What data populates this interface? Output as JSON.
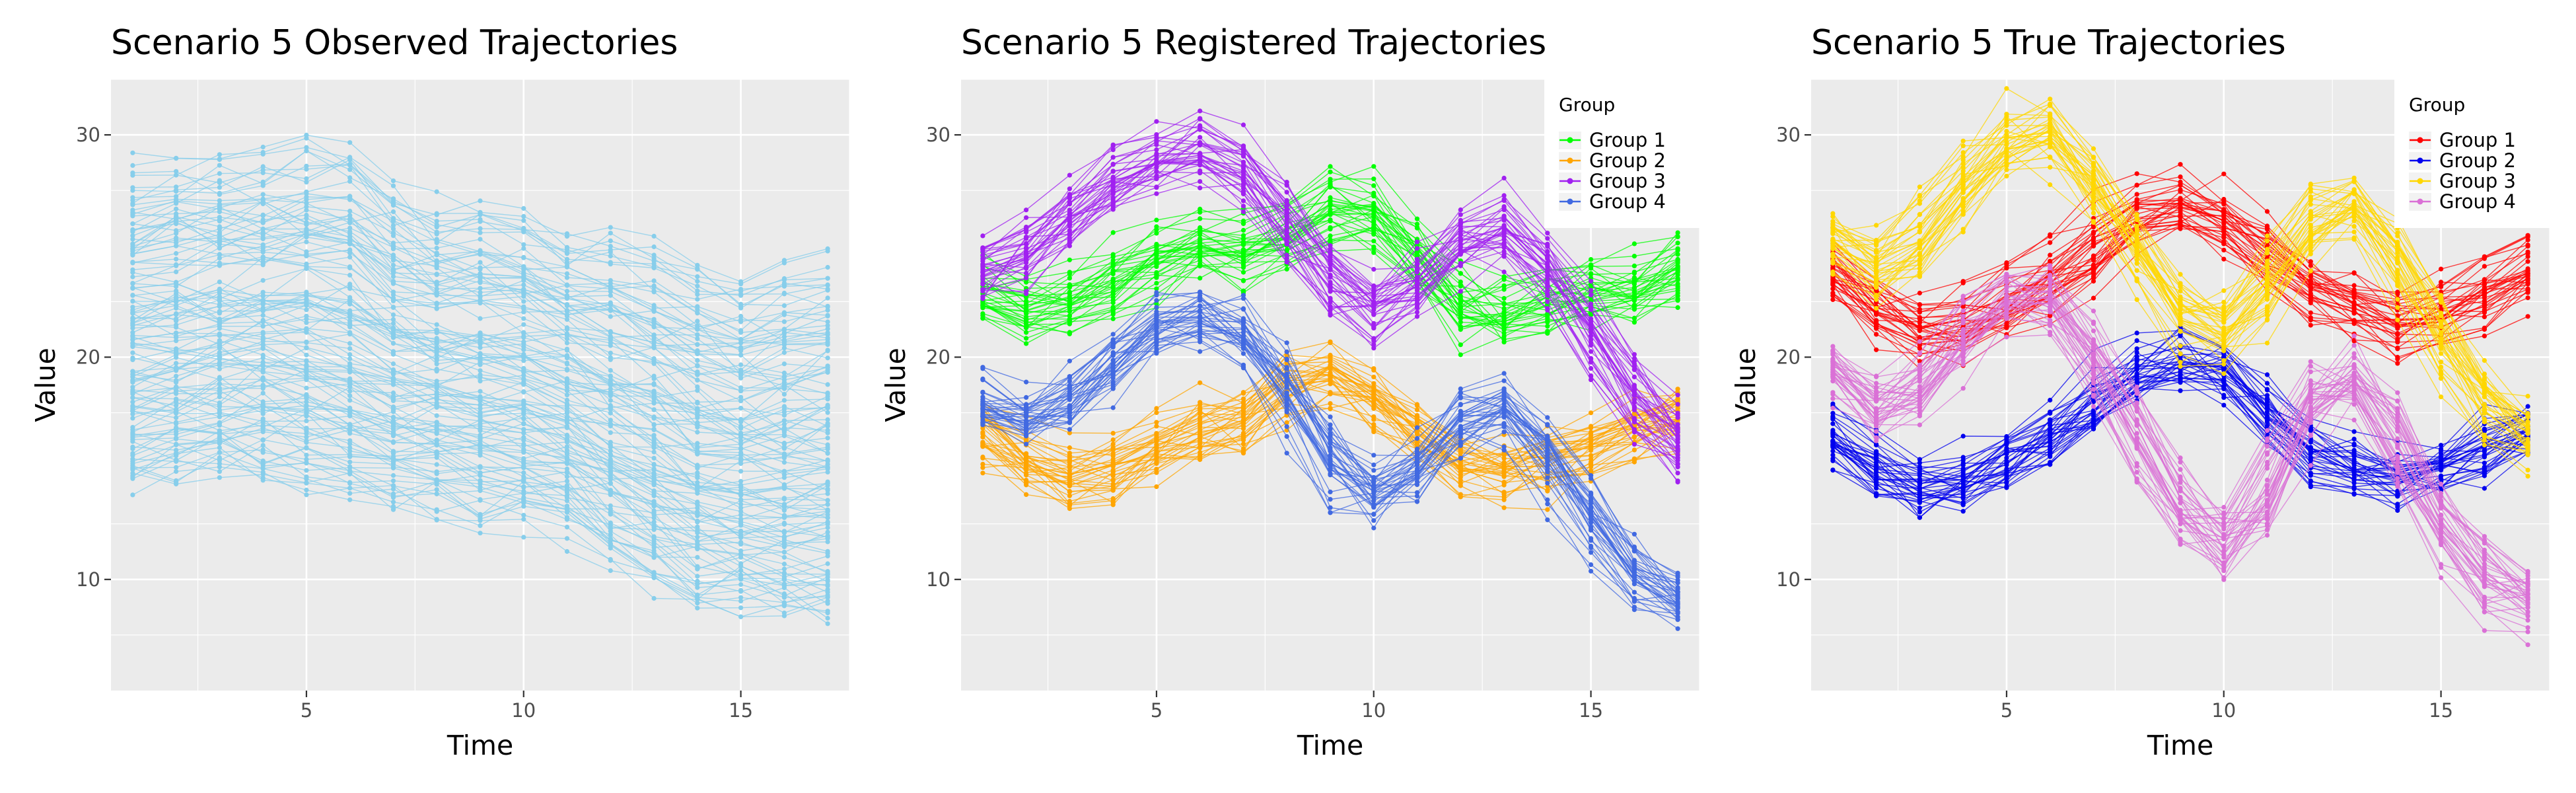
{
  "chart_data": [
    {
      "type": "line",
      "title": "Scenario 5 Observed Trajectories",
      "xlabel": "Time",
      "ylabel": "Value",
      "xlim": [
        0.5,
        17.5
      ],
      "ylim": [
        5,
        32.5
      ],
      "x_ticks": [
        5,
        10,
        15
      ],
      "y_ticks": [
        10,
        20,
        30
      ],
      "grid": true,
      "legend": null,
      "line_color": "#87CEEB",
      "x": [
        1,
        2,
        3,
        4,
        5,
        6,
        7,
        8,
        9,
        10,
        11,
        12,
        13,
        14,
        15,
        16,
        17
      ],
      "band_min": [
        12.5,
        12.5,
        13,
        13,
        12.5,
        12,
        11.5,
        11.5,
        11,
        11,
        10.5,
        9,
        8,
        7,
        7,
        6.5,
        6.5
      ],
      "band_max": [
        30,
        30.5,
        30.5,
        30.5,
        31,
        31,
        29,
        28,
        28.5,
        28,
        27,
        27,
        26.5,
        25.5,
        25,
        25.5,
        26
      ]
    },
    {
      "type": "line",
      "title": "Scenario 5 Registered Trajectories",
      "xlabel": "Time",
      "ylabel": "Value",
      "xlim": [
        0.5,
        17.5
      ],
      "ylim": [
        5,
        32.5
      ],
      "x_ticks": [
        5,
        10,
        15
      ],
      "y_ticks": [
        10,
        20,
        30
      ],
      "grid": true,
      "legend": {
        "title": "Group",
        "position": "top-right"
      },
      "x": [
        1,
        2,
        3,
        4,
        5,
        6,
        7,
        8,
        9,
        10,
        11,
        12,
        13,
        14,
        15,
        16,
        17
      ],
      "series": [
        {
          "name": "Group 1",
          "color": "#00FF00",
          "values": [
            23,
            22,
            22.5,
            23.5,
            24.5,
            25,
            24.5,
            25.5,
            27,
            26.5,
            24.5,
            22,
            22,
            22.5,
            23,
            23,
            24
          ]
        },
        {
          "name": "Group 2",
          "color": "#FFA500",
          "values": [
            17,
            15.5,
            14.5,
            15,
            16,
            17,
            17,
            19,
            19.5,
            18.5,
            17,
            15,
            15,
            15.5,
            16,
            17,
            17.5
          ]
        },
        {
          "name": "Group 3",
          "color": "#A020F0",
          "values": [
            24,
            25,
            26.5,
            28,
            29,
            29.5,
            28.5,
            26,
            23.5,
            22,
            23.5,
            25.5,
            26,
            24,
            21,
            18,
            16
          ]
        },
        {
          "name": "Group 4",
          "color": "#4169E1",
          "values": [
            18,
            17,
            18,
            20,
            21.5,
            22,
            21,
            18.5,
            15,
            13.5,
            15,
            17.5,
            18,
            15.5,
            12.5,
            10,
            9
          ]
        }
      ]
    },
    {
      "type": "line",
      "title": "Scenario 5 True Trajectories",
      "xlabel": "Time",
      "ylabel": "Value",
      "xlim": [
        0.5,
        17.5
      ],
      "ylim": [
        5,
        32.5
      ],
      "x_ticks": [
        5,
        10,
        15
      ],
      "y_ticks": [
        10,
        20,
        30
      ],
      "grid": true,
      "legend": {
        "title": "Group",
        "position": "top-right"
      },
      "x": [
        1,
        2,
        3,
        4,
        5,
        6,
        7,
        8,
        9,
        10,
        11,
        12,
        13,
        14,
        15,
        16,
        17
      ],
      "series": [
        {
          "name": "Group 1",
          "color": "#FF0000",
          "values": [
            24,
            22,
            21,
            21.5,
            22.5,
            23.5,
            25,
            26.5,
            27,
            26,
            24.5,
            23,
            22,
            21.5,
            22,
            23,
            24
          ]
        },
        {
          "name": "Group 2",
          "color": "#0000EE",
          "values": [
            16.5,
            15,
            14,
            14.5,
            15.5,
            16.5,
            18,
            19.5,
            20,
            19.5,
            17.5,
            15.5,
            15,
            14.5,
            15,
            16,
            17
          ]
        },
        {
          "name": "Group 3",
          "color": "#FFD700",
          "values": [
            25.5,
            24,
            25.5,
            28,
            30,
            30.5,
            28,
            25,
            22,
            21,
            23.5,
            26.5,
            27.5,
            24.5,
            21,
            18,
            16.5
          ]
        },
        {
          "name": "Group 4",
          "color": "#DA70D6",
          "values": [
            19.5,
            17.5,
            18.5,
            21,
            23,
            23,
            20,
            16.5,
            13,
            11,
            14,
            18.5,
            19.5,
            16,
            12.5,
            10,
            9
          ]
        }
      ]
    }
  ]
}
